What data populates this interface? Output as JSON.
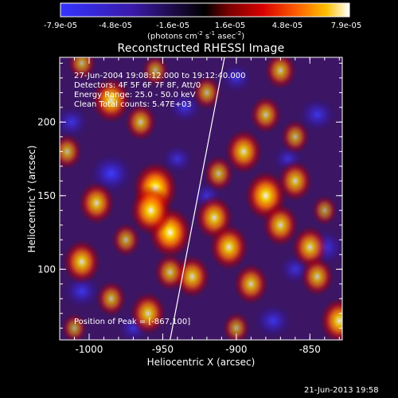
{
  "colorbar": {
    "tick_labels": [
      "-7.9e-05",
      "-4.8e-05",
      "-1.6e-05",
      "1.6e-05",
      "4.8e-05",
      "7.9e-05"
    ],
    "units_main": "(photons cm",
    "units_exp1": "-2",
    "units_s": " s",
    "units_exp2": "-1",
    "units_asec": " asec",
    "units_exp3": "-2",
    "units_close": ")"
  },
  "chart_data": {
    "type": "heatmap",
    "title": "Reconstructed RHESSI Image",
    "xlabel": "Heliocentric X (arcsec)",
    "ylabel": "Heliocentric Y (arcsec)",
    "xlim": [
      -1020,
      -828
    ],
    "ylim": [
      52,
      244
    ],
    "x_ticks": [
      -1000,
      -950,
      -900,
      -850
    ],
    "y_ticks": [
      100,
      150,
      200
    ],
    "x_tick_labels": [
      "-1000",
      "-950",
      "-900",
      "-850"
    ],
    "y_tick_labels": [
      "100",
      "150",
      "200"
    ],
    "color_range": [
      -7.9e-05,
      7.9e-05
    ],
    "annotations": [
      "27-Jun-2004 19:08:12.000 to 19:12:40.000",
      "Detectors: 4F 5F 6F 7F 8F, Att/0",
      "Energy Range: 25.0 - 50.0 keV",
      "Clean      Total counts: 5.47E+03"
    ],
    "peak_label": "Position of Peak = [-867,100]",
    "peak": [
      -867,
      100
    ],
    "limb_line": [
      [
        -945,
        52
      ],
      [
        -908,
        244
      ]
    ],
    "sources": [
      {
        "x": -955,
        "y": 155,
        "v": 1.0
      },
      {
        "x": -945,
        "y": 125,
        "v": 0.95
      },
      {
        "x": -958,
        "y": 140,
        "v": 0.9
      },
      {
        "x": -880,
        "y": 150,
        "v": 0.9
      },
      {
        "x": -895,
        "y": 180,
        "v": 0.75
      },
      {
        "x": -915,
        "y": 135,
        "v": 0.75
      },
      {
        "x": -905,
        "y": 115,
        "v": 0.8
      },
      {
        "x": -870,
        "y": 130,
        "v": 0.7
      },
      {
        "x": -860,
        "y": 160,
        "v": 0.65
      },
      {
        "x": -995,
        "y": 145,
        "v": 0.7
      },
      {
        "x": -1005,
        "y": 105,
        "v": 0.75
      },
      {
        "x": -985,
        "y": 215,
        "v": 0.8
      },
      {
        "x": -965,
        "y": 200,
        "v": 0.55
      },
      {
        "x": -870,
        "y": 235,
        "v": 0.55
      },
      {
        "x": -850,
        "y": 115,
        "v": 0.7
      },
      {
        "x": -845,
        "y": 95,
        "v": 0.6
      },
      {
        "x": -930,
        "y": 95,
        "v": 0.7
      },
      {
        "x": -890,
        "y": 90,
        "v": 0.65
      },
      {
        "x": -960,
        "y": 70,
        "v": 0.7
      },
      {
        "x": -830,
        "y": 65,
        "v": 0.8
      },
      {
        "x": -920,
        "y": 220,
        "v": 0.45
      },
      {
        "x": -1015,
        "y": 180,
        "v": 0.5
      },
      {
        "x": -945,
        "y": 98,
        "v": 0.55
      },
      {
        "x": -912,
        "y": 165,
        "v": 0.5
      },
      {
        "x": -975,
        "y": 120,
        "v": 0.45
      },
      {
        "x": -1010,
        "y": 60,
        "v": 0.35
      },
      {
        "x": -985,
        "y": 80,
        "v": 0.5
      },
      {
        "x": -1005,
        "y": 240,
        "v": 0.45
      },
      {
        "x": -955,
        "y": 235,
        "v": 0.4
      },
      {
        "x": -860,
        "y": 190,
        "v": 0.45
      },
      {
        "x": -900,
        "y": 60,
        "v": 0.4
      },
      {
        "x": -880,
        "y": 205,
        "v": 0.55
      },
      {
        "x": -840,
        "y": 140,
        "v": 0.35
      }
    ],
    "negatives": [
      {
        "x": -985,
        "y": 165,
        "v": 1.0
      },
      {
        "x": -1005,
        "y": 85,
        "v": 0.7
      },
      {
        "x": -935,
        "y": 210,
        "v": 0.55
      },
      {
        "x": -840,
        "y": 115,
        "v": 0.8
      },
      {
        "x": -845,
        "y": 205,
        "v": 0.7
      },
      {
        "x": -875,
        "y": 65,
        "v": 0.7
      },
      {
        "x": -900,
        "y": 230,
        "v": 0.5
      },
      {
        "x": -970,
        "y": 60,
        "v": 0.45
      },
      {
        "x": -920,
        "y": 150,
        "v": 0.4
      },
      {
        "x": -1012,
        "y": 200,
        "v": 0.6
      },
      {
        "x": -860,
        "y": 100,
        "v": 0.5
      },
      {
        "x": -940,
        "y": 175,
        "v": 0.45
      },
      {
        "x": -865,
        "y": 175,
        "v": 0.4
      }
    ]
  },
  "footer": {
    "timestamp": "21-Jun-2013 19:58"
  }
}
